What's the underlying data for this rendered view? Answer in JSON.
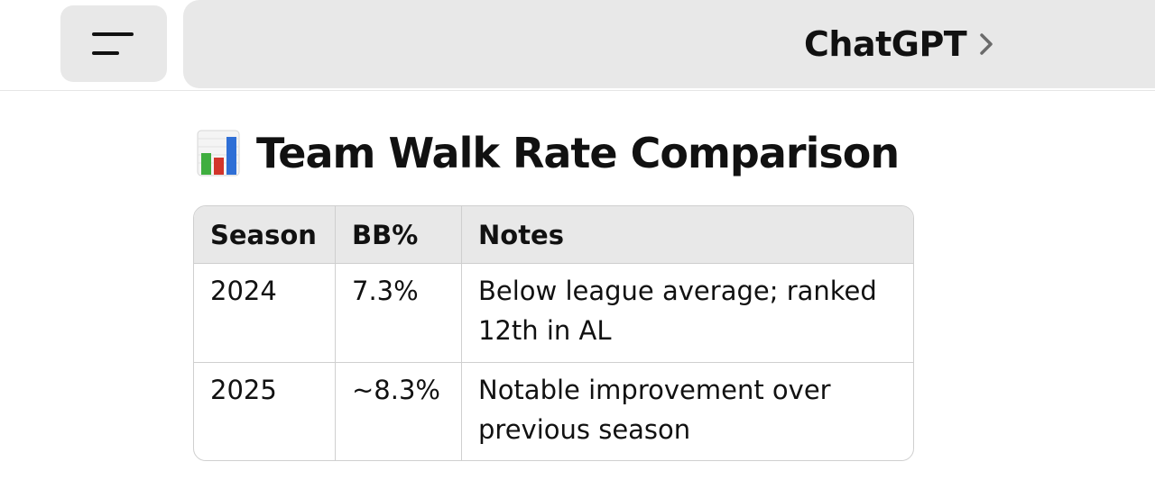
{
  "header": {
    "app_title": "ChatGPT",
    "menu_icon": "menu-icon",
    "chevron_icon": "chevron-right-icon"
  },
  "content": {
    "heading_icon": "bar-chart-icon",
    "heading": "Team Walk Rate Comparison",
    "table": {
      "columns": [
        "Season",
        "BB%",
        "Notes"
      ],
      "rows": [
        [
          "2024",
          "7.3%",
          "Below league average; ranked 12th in AL"
        ],
        [
          "2025",
          "~8.3%",
          "Notable improvement over previous season"
        ]
      ]
    }
  },
  "colors": {
    "pill_bg": "#e8e8e8",
    "text": "#111111",
    "border": "#cfcfcf"
  }
}
